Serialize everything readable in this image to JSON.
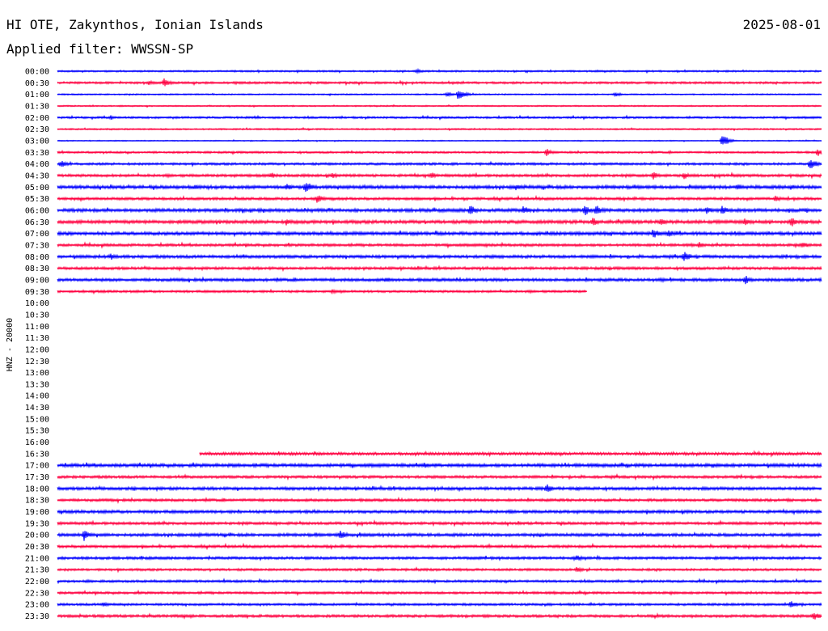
{
  "header": {
    "station": "HI OTE, Zakynthos, Ionian Islands",
    "date": "2025-08-01",
    "filter": "Applied filter: WWSSN-SP"
  },
  "chart_data": {
    "type": "line",
    "title": "HI OTE, Zakynthos, Ionian Islands",
    "ylabel": "HNZ - 20000",
    "xlabel": "",
    "tick_labels": [
      "00:00",
      "00:30",
      "01:00",
      "01:30",
      "02:00",
      "02:30",
      "03:00",
      "03:30",
      "04:00",
      "04:30",
      "05:00",
      "05:30",
      "06:00",
      "06:30",
      "07:00",
      "07:30",
      "08:00",
      "08:30",
      "09:00",
      "09:30",
      "10:00",
      "10:30",
      "11:00",
      "11:30",
      "12:00",
      "12:30",
      "13:00",
      "13:30",
      "14:00",
      "14:30",
      "15:00",
      "15:30",
      "16:00",
      "16:30",
      "17:00",
      "17:30",
      "18:00",
      "18:30",
      "19:00",
      "19:30",
      "20:00",
      "20:30",
      "21:00",
      "21:30",
      "22:00",
      "22:30",
      "23:00",
      "23:30"
    ],
    "trace_colors": [
      "#0000ff",
      "#ff0040"
    ],
    "traces": [
      {
        "label": "00:00",
        "start": 0,
        "end": 1,
        "noise": 1.0,
        "events": [
          [
            0.47,
            3
          ]
        ]
      },
      {
        "label": "00:30",
        "start": 0,
        "end": 1,
        "noise": 1.3,
        "events": [
          [
            0.14,
            6
          ],
          [
            0.12,
            3
          ]
        ]
      },
      {
        "label": "01:00",
        "start": 0,
        "end": 1,
        "noise": 0.8,
        "events": [
          [
            0.525,
            8
          ],
          [
            0.51,
            3
          ],
          [
            0.73,
            3
          ]
        ]
      },
      {
        "label": "01:30",
        "start": 0,
        "end": 1,
        "noise": 0.8,
        "events": []
      },
      {
        "label": "02:00",
        "start": 0,
        "end": 1,
        "noise": 1.2,
        "events": [
          [
            0.07,
            3
          ],
          [
            0.26,
            2
          ]
        ]
      },
      {
        "label": "02:30",
        "start": 0,
        "end": 1,
        "noise": 0.9,
        "events": []
      },
      {
        "label": "03:00",
        "start": 0,
        "end": 1,
        "noise": 0.6,
        "events": [
          [
            0.87,
            9
          ]
        ]
      },
      {
        "label": "03:30",
        "start": 0,
        "end": 1,
        "noise": 1.2,
        "events": [
          [
            0.64,
            5
          ],
          [
            0.995,
            5
          ]
        ]
      },
      {
        "label": "04:00",
        "start": 0,
        "end": 1,
        "noise": 1.4,
        "events": [
          [
            0.005,
            5
          ],
          [
            0.985,
            8
          ]
        ]
      },
      {
        "label": "04:30",
        "start": 0,
        "end": 1,
        "noise": 1.6,
        "events": [
          [
            0.28,
            4
          ],
          [
            0.36,
            4
          ],
          [
            0.49,
            4
          ],
          [
            0.78,
            5
          ],
          [
            0.82,
            5
          ]
        ]
      },
      {
        "label": "05:00",
        "start": 0,
        "end": 1,
        "noise": 2.0,
        "events": [
          [
            0.18,
            4
          ],
          [
            0.3,
            5
          ],
          [
            0.325,
            9
          ],
          [
            0.6,
            5
          ],
          [
            0.89,
            5
          ],
          [
            0.96,
            4
          ]
        ]
      },
      {
        "label": "05:30",
        "start": 0,
        "end": 1,
        "noise": 1.6,
        "events": [
          [
            0.34,
            6
          ],
          [
            0.94,
            4
          ]
        ]
      },
      {
        "label": "06:00",
        "start": 0,
        "end": 1,
        "noise": 2.0,
        "events": [
          [
            0.54,
            7
          ],
          [
            0.61,
            6
          ],
          [
            0.69,
            7
          ],
          [
            0.705,
            7
          ],
          [
            0.85,
            5
          ],
          [
            0.87,
            6
          ]
        ]
      },
      {
        "label": "06:30",
        "start": 0,
        "end": 1,
        "noise": 2.0,
        "events": [
          [
            0.3,
            5
          ],
          [
            0.7,
            6
          ],
          [
            0.79,
            5
          ],
          [
            0.9,
            5
          ],
          [
            0.96,
            7
          ]
        ]
      },
      {
        "label": "07:00",
        "start": 0,
        "end": 1,
        "noise": 2.0,
        "events": [
          [
            0.78,
            7
          ],
          [
            0.8,
            5
          ]
        ]
      },
      {
        "label": "07:30",
        "start": 0,
        "end": 1,
        "noise": 1.6,
        "events": [
          [
            0.56,
            3
          ],
          [
            0.84,
            4
          ],
          [
            0.975,
            5
          ]
        ]
      },
      {
        "label": "08:00",
        "start": 0,
        "end": 1,
        "noise": 1.8,
        "events": [
          [
            0.07,
            5
          ],
          [
            0.82,
            7
          ]
        ]
      },
      {
        "label": "08:30",
        "start": 0,
        "end": 1,
        "noise": 1.6,
        "events": []
      },
      {
        "label": "09:00",
        "start": 0,
        "end": 1,
        "noise": 1.8,
        "events": [
          [
            0.43,
            4
          ],
          [
            0.79,
            3
          ],
          [
            0.9,
            6
          ]
        ]
      },
      {
        "label": "09:30",
        "start": 0,
        "end": 0.693,
        "noise": 1.4,
        "events": [
          [
            0.36,
            3
          ]
        ]
      },
      {
        "label": "10:00",
        "start": 0,
        "end": 0,
        "noise": 0,
        "events": []
      },
      {
        "label": "10:30",
        "start": 0,
        "end": 0,
        "noise": 0,
        "events": []
      },
      {
        "label": "11:00",
        "start": 0,
        "end": 0,
        "noise": 0,
        "events": []
      },
      {
        "label": "11:30",
        "start": 0,
        "end": 0,
        "noise": 0,
        "events": []
      },
      {
        "label": "12:00",
        "start": 0,
        "end": 0,
        "noise": 0,
        "events": []
      },
      {
        "label": "12:30",
        "start": 0,
        "end": 0,
        "noise": 0,
        "events": []
      },
      {
        "label": "13:00",
        "start": 0,
        "end": 0,
        "noise": 0,
        "events": []
      },
      {
        "label": "13:30",
        "start": 0,
        "end": 0,
        "noise": 0,
        "events": []
      },
      {
        "label": "14:00",
        "start": 0,
        "end": 0,
        "noise": 0,
        "events": []
      },
      {
        "label": "14:30",
        "start": 0,
        "end": 0,
        "noise": 0,
        "events": []
      },
      {
        "label": "15:00",
        "start": 0,
        "end": 0,
        "noise": 0,
        "events": []
      },
      {
        "label": "15:30",
        "start": 0,
        "end": 0,
        "noise": 0,
        "events": []
      },
      {
        "label": "16:00",
        "start": 0,
        "end": 0,
        "noise": 0,
        "events": []
      },
      {
        "label": "16:30",
        "start": 0.186,
        "end": 1,
        "noise": 1.6,
        "events": []
      },
      {
        "label": "17:00",
        "start": 0,
        "end": 1,
        "noise": 2.0,
        "events": [
          [
            0.48,
            4
          ]
        ]
      },
      {
        "label": "17:30",
        "start": 0,
        "end": 1,
        "noise": 1.6,
        "events": []
      },
      {
        "label": "18:00",
        "start": 0,
        "end": 1,
        "noise": 1.8,
        "events": [
          [
            0.64,
            6
          ],
          [
            0.68,
            3
          ]
        ]
      },
      {
        "label": "18:30",
        "start": 0,
        "end": 1,
        "noise": 1.6,
        "events": []
      },
      {
        "label": "19:00",
        "start": 0,
        "end": 1,
        "noise": 1.8,
        "events": []
      },
      {
        "label": "19:30",
        "start": 0,
        "end": 1,
        "noise": 1.6,
        "events": []
      },
      {
        "label": "20:00",
        "start": 0,
        "end": 1,
        "noise": 1.8,
        "events": [
          [
            0.035,
            8
          ],
          [
            0.37,
            7
          ]
        ]
      },
      {
        "label": "20:30",
        "start": 0,
        "end": 1,
        "noise": 1.6,
        "events": [
          [
            0.93,
            3
          ]
        ]
      },
      {
        "label": "21:00",
        "start": 0,
        "end": 1,
        "noise": 1.6,
        "events": [
          [
            0.68,
            4
          ]
        ]
      },
      {
        "label": "21:30",
        "start": 0,
        "end": 1,
        "noise": 1.4,
        "events": [
          [
            0.68,
            4
          ]
        ]
      },
      {
        "label": "22:00",
        "start": 0,
        "end": 1,
        "noise": 1.4,
        "events": []
      },
      {
        "label": "22:30",
        "start": 0,
        "end": 1,
        "noise": 1.4,
        "events": []
      },
      {
        "label": "23:00",
        "start": 0,
        "end": 1,
        "noise": 1.4,
        "events": [
          [
            0.06,
            4
          ],
          [
            0.96,
            5
          ]
        ]
      },
      {
        "label": "23:30",
        "start": 0,
        "end": 1,
        "noise": 1.6,
        "events": [
          [
            0.99,
            6
          ]
        ]
      }
    ]
  }
}
